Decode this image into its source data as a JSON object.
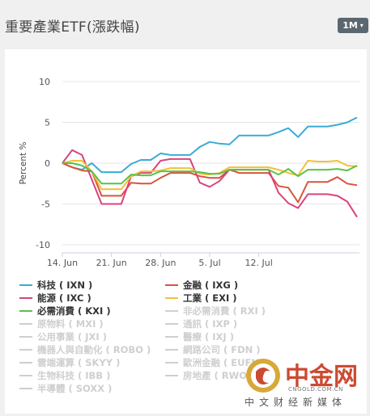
{
  "header": {
    "title": "重要產業ETF(漲跌幅)",
    "range_button": "1M",
    "range_caret": "▾"
  },
  "chart_data": {
    "type": "line",
    "title": "重要產業ETF(漲跌幅)",
    "xlabel": "",
    "ylabel": "Percent %",
    "ylim": [
      -10,
      10
    ],
    "yticks": [
      10,
      5,
      0,
      -5,
      -10
    ],
    "xticks": [
      {
        "label": "14. Jun",
        "index": 0
      },
      {
        "label": "21. Jun",
        "index": 5
      },
      {
        "label": "28. Jun",
        "index": 10
      },
      {
        "label": "5. Jul",
        "index": 15
      },
      {
        "label": "12. Jul",
        "index": 20
      }
    ],
    "grid": "horizontal",
    "series": [
      {
        "name": "科技 ( IXN )",
        "color": "#3aabd6",
        "values": [
          0,
          -0.5,
          -0.8,
          0,
          -1.1,
          -1.1,
          -1.1,
          -0.1,
          0.4,
          0.4,
          1.2,
          1.0,
          1.0,
          1.0,
          2.0,
          2.6,
          2.4,
          2.3,
          3.4,
          3.4,
          3.4,
          3.4,
          3.8,
          4.3,
          3.2,
          4.5,
          4.5,
          4.5,
          4.7,
          5.0,
          5.6
        ]
      },
      {
        "name": "金融 ( IXG )",
        "color": "#d9533c",
        "values": [
          0,
          -0.5,
          -0.9,
          -1.0,
          -4.0,
          -4.0,
          -4.0,
          -2.4,
          -2.5,
          -2.5,
          -1.8,
          -1.2,
          -1.2,
          -1.2,
          -1.6,
          -1.8,
          -1.8,
          -0.8,
          -1.2,
          -1.2,
          -1.2,
          -1.2,
          -2.8,
          -3.0,
          -4.8,
          -2.3,
          -2.3,
          -2.3,
          -1.7,
          -2.5,
          -2.7
        ]
      },
      {
        "name": "能源 ( IXC )",
        "color": "#d9437e",
        "values": [
          0,
          1.6,
          1.0,
          -2.0,
          -5.0,
          -5.0,
          -5.0,
          -1.6,
          -1.2,
          -1.2,
          0.3,
          0.5,
          0.5,
          0.5,
          -2.4,
          -2.9,
          -2.2,
          -0.8,
          -0.8,
          -0.8,
          -0.8,
          -0.8,
          -3.6,
          -4.9,
          -5.5,
          -3.8,
          -3.8,
          -3.8,
          -4.0,
          -4.7,
          -6.6
        ]
      },
      {
        "name": "工業 ( EXI )",
        "color": "#f2c037",
        "values": [
          0,
          0.3,
          0.3,
          -1.0,
          -3.2,
          -3.2,
          -3.2,
          -1.6,
          -1.0,
          -1.0,
          -0.9,
          -0.6,
          -0.6,
          -0.6,
          -1.3,
          -1.4,
          -1.2,
          -0.5,
          -0.5,
          -0.5,
          -0.5,
          -0.5,
          -0.8,
          -1.2,
          -1.5,
          0.3,
          0.2,
          0.2,
          0.3,
          -0.3,
          -0.4
        ]
      },
      {
        "name": "必需消費 ( KXI )",
        "color": "#59c24a",
        "values": [
          0,
          0,
          -0.3,
          -1.0,
          -2.5,
          -2.5,
          -2.5,
          -1.4,
          -1.5,
          -1.5,
          -1.0,
          -1.0,
          -1.0,
          -1.0,
          -1.1,
          -1.3,
          -1.3,
          -0.8,
          -0.8,
          -0.8,
          -0.8,
          -0.8,
          -1.4,
          -0.7,
          -1.6,
          -0.8,
          -0.8,
          -0.8,
          -0.7,
          -0.9,
          -0.3
        ]
      }
    ]
  },
  "legend": [
    {
      "label": "科技 ( IXN )",
      "color": "#3aabd6",
      "active": true
    },
    {
      "label": "金融 ( IXG )",
      "color": "#d9533c",
      "active": true
    },
    {
      "label": "能源 ( IXC )",
      "color": "#d9437e",
      "active": true
    },
    {
      "label": "工業 ( EXI )",
      "color": "#f2c037",
      "active": true
    },
    {
      "label": "必需消費 ( KXI )",
      "color": "#59c24a",
      "active": true
    },
    {
      "label": "非必需消費 ( RXI )",
      "color": "#cfcfcf",
      "active": false
    },
    {
      "label": "原物料 ( MXI )",
      "color": "#cfcfcf",
      "active": false
    },
    {
      "label": "通訊 ( IXP )",
      "color": "#cfcfcf",
      "active": false
    },
    {
      "label": "公用事業 ( JXI )",
      "color": "#cfcfcf",
      "active": false
    },
    {
      "label": "醫療 ( IXJ )",
      "color": "#cfcfcf",
      "active": false
    },
    {
      "label": "機器人與自動化 ( ROBO )",
      "color": "#cfcfcf",
      "active": false
    },
    {
      "label": "網路公司 ( FDN )",
      "color": "#cfcfcf",
      "active": false
    },
    {
      "label": "雲端運算 ( SKYY )",
      "color": "#cfcfcf",
      "active": false
    },
    {
      "label": "歐洲金融 ( EUFN )",
      "color": "#cfcfcf",
      "active": false
    },
    {
      "label": "生物科技 ( IBB )",
      "color": "#cfcfcf",
      "active": false
    },
    {
      "label": "房地產 ( RWO )",
      "color": "#cfcfcf",
      "active": false
    },
    {
      "label": "半導體 ( SOXX )",
      "color": "#cfcfcf",
      "active": false
    }
  ],
  "watermark": {
    "brand": "中金网",
    "url": "CNGOLD.COM.CN",
    "tagline": "中文财经新媒体",
    "brand_color": "#cc4a32"
  }
}
